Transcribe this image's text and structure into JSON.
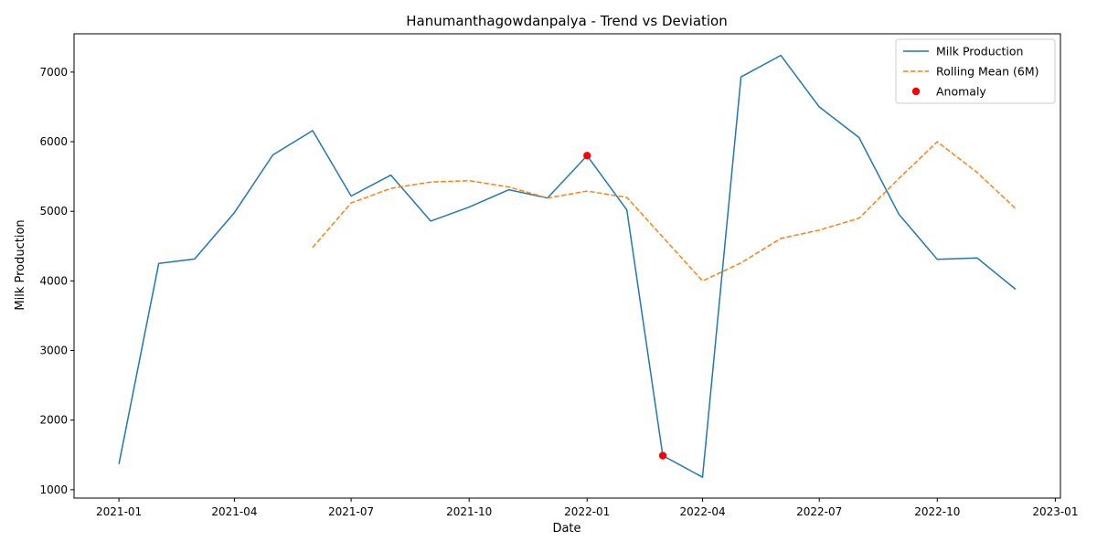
{
  "chart_data": {
    "type": "line",
    "title": "Hanumanthagowdanpalya - Trend vs Deviation",
    "xlabel": "Date",
    "ylabel": "Milk Production",
    "x_dates": [
      "2021-01",
      "2021-02",
      "2021-03",
      "2021-04",
      "2021-05",
      "2021-06",
      "2021-07",
      "2021-08",
      "2021-09",
      "2021-10",
      "2021-11",
      "2021-12",
      "2022-01",
      "2022-02",
      "2022-03",
      "2022-04",
      "2022-05",
      "2022-06",
      "2022-07",
      "2022-08",
      "2022-09",
      "2022-10",
      "2022-11",
      "2022-12"
    ],
    "x_ticks": [
      "2021-01",
      "2021-04",
      "2021-07",
      "2021-10",
      "2022-01",
      "2022-04",
      "2022-07",
      "2022-10",
      "2023-01"
    ],
    "y_ticks": [
      1000,
      2000,
      3000,
      4000,
      5000,
      6000,
      7000
    ],
    "ylim": [
      880,
      7550
    ],
    "xlim": [
      "2020-11-27",
      "2023-01-05"
    ],
    "grid": false,
    "legend_position": "top-right",
    "series": [
      {
        "name": "Milk Production",
        "style": "solid",
        "color": "#1f77b4",
        "values": [
          1370,
          4250,
          4315,
          4980,
          5810,
          6160,
          5220,
          5520,
          4860,
          5060,
          5310,
          5190,
          5800,
          5020,
          1490,
          1180,
          6930,
          7240,
          6500,
          6060,
          4960,
          4310,
          4330,
          3880
        ]
      },
      {
        "name": "Rolling Mean (6M)",
        "style": "dashed",
        "color": "#ff7f0e",
        "values": [
          null,
          null,
          null,
          null,
          null,
          4480,
          5120,
          5330,
          5420,
          5440,
          5350,
          5190,
          5290,
          5200,
          4630,
          4000,
          4260,
          4610,
          4730,
          4900,
          5470,
          6000,
          5560,
          5040
        ]
      }
    ],
    "anomalies": {
      "name": "Anomaly",
      "color": "#ff0000",
      "points": [
        {
          "date": "2022-01",
          "value": 5800
        },
        {
          "date": "2022-03",
          "value": 1490
        }
      ]
    }
  }
}
